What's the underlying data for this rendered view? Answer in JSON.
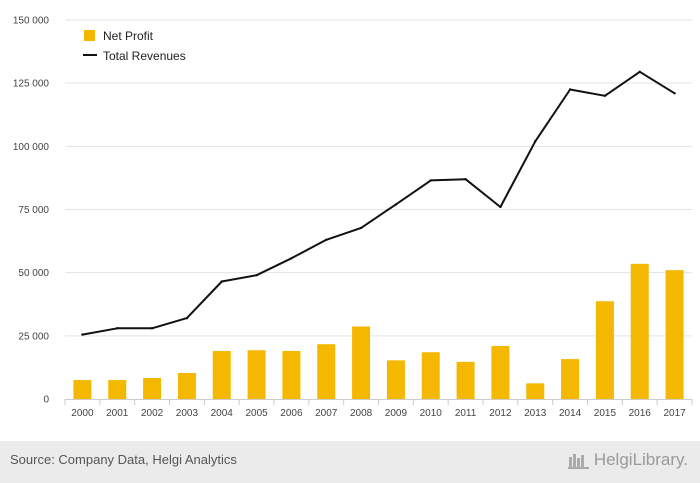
{
  "chart_data": {
    "type": "bar",
    "categories": [
      "2000",
      "2001",
      "2002",
      "2003",
      "2004",
      "2005",
      "2006",
      "2007",
      "2008",
      "2009",
      "2010",
      "2011",
      "2012",
      "2013",
      "2014",
      "2015",
      "2016",
      "2017"
    ],
    "series": [
      {
        "name": "Net Profit",
        "type": "bar",
        "color": "#f5b800",
        "values": [
          7500,
          7500,
          8300,
          10300,
          19000,
          19300,
          19000,
          21700,
          28700,
          15300,
          18500,
          14700,
          21000,
          6200,
          15800,
          38700,
          53500,
          51000
        ]
      },
      {
        "name": "Total Revenues",
        "type": "line",
        "color": "#111111",
        "values": [
          25500,
          28000,
          28000,
          32000,
          46500,
          49000,
          55700,
          63000,
          67700,
          77000,
          86500,
          87000,
          76000,
          102000,
          122500,
          120000,
          129500,
          121000
        ]
      }
    ],
    "yticks": [
      "0",
      "25 000",
      "50 000",
      "75 000",
      "100 000",
      "125 000",
      "150 000"
    ],
    "ylim": [
      0,
      150000
    ],
    "grid": true,
    "legend_position": "top-left"
  },
  "footer": {
    "source": "Source: Company Data, Helgi Analytics",
    "brand": "HelgiLibrary."
  }
}
